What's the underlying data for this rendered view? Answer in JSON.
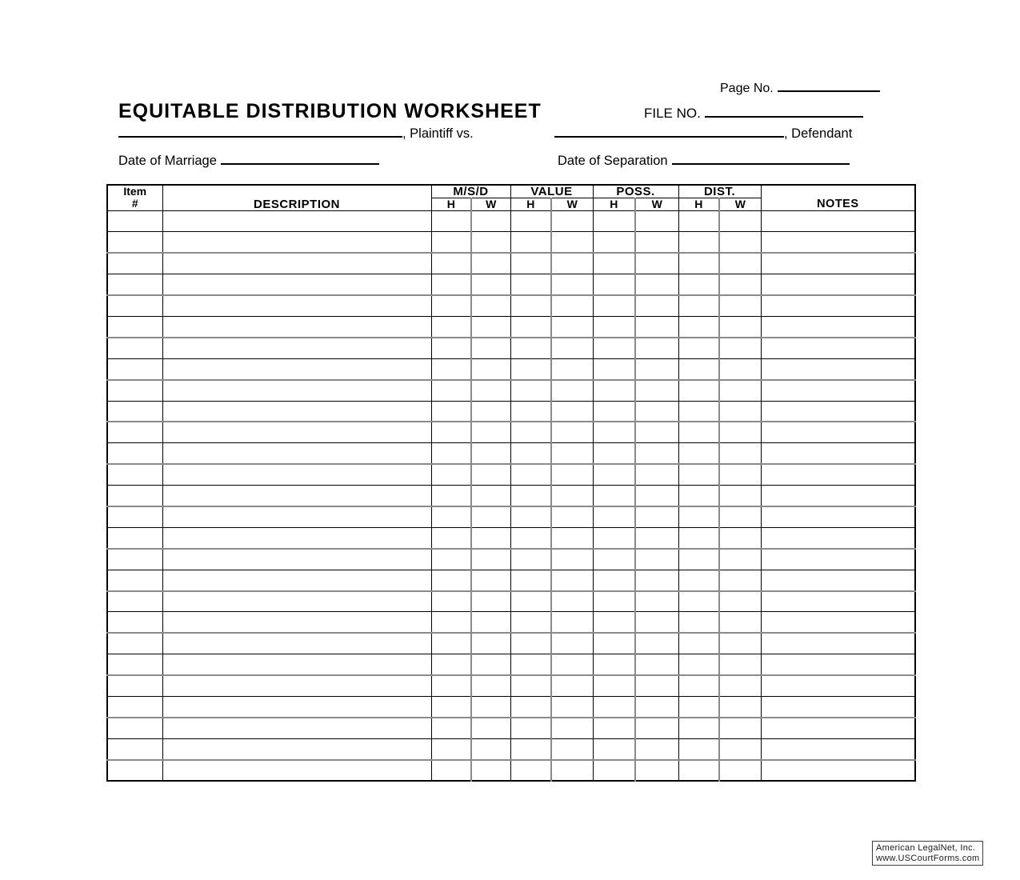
{
  "header": {
    "page_no_label": "Page No.",
    "title": "EQUITABLE DISTRIBUTION WORKSHEET",
    "file_no_label": "FILE NO.",
    "plaintiff_suffix": ", Plaintiff vs.",
    "defendant_suffix": ", Defendant",
    "date_of_marriage_label": "Date of Marriage",
    "date_of_separation_label": "Date of Separation"
  },
  "table": {
    "header": {
      "item_label": "Item",
      "item_symbol": "#",
      "description": "DESCRIPTION",
      "groups": [
        {
          "label": "M/S/D",
          "sub": [
            "H",
            "W"
          ]
        },
        {
          "label": "VALUE",
          "sub": [
            "H",
            "W"
          ]
        },
        {
          "label": "POSS.",
          "sub": [
            "H",
            "W"
          ]
        },
        {
          "label": "DIST.",
          "sub": [
            "H",
            "W"
          ]
        }
      ],
      "notes": "NOTES"
    },
    "body_row_count": 27,
    "rows": []
  },
  "footer": {
    "line1": "American LegalNet, Inc.",
    "line2": "www.USCourtForms.com"
  },
  "colors": {
    "ink": "#000000",
    "grid_gray": "#8a8a8a",
    "page_bg": "#ffffff"
  }
}
